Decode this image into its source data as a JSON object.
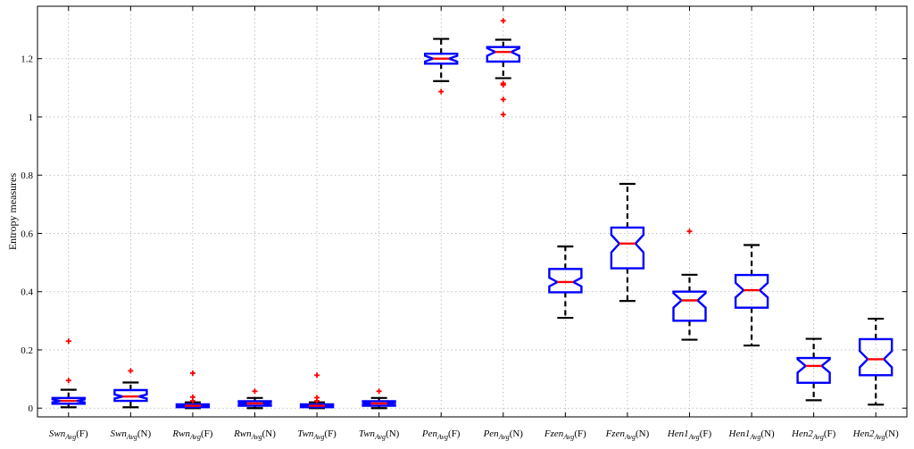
{
  "chart_data": {
    "type": "box",
    "ylabel": "Entropy measures",
    "xlabel": "",
    "title": "",
    "ylim": [
      -0.03,
      1.38
    ],
    "yticks": [
      0,
      0.2,
      0.4,
      0.6,
      0.8,
      1,
      1.2
    ],
    "ytick_labels": [
      "0",
      "0.2",
      "0.4",
      "0.6",
      "0.8",
      "1",
      "1.2"
    ],
    "grid": true,
    "colors": {
      "box": "#0000ff",
      "median": "#ff0000",
      "whisker": "#000000",
      "outlier": "#ff0000",
      "grid": "#b0b0b0"
    },
    "boxes": [
      {
        "base": "Swn",
        "sub": "Avg",
        "suffix": "(F)",
        "q1": 0.015,
        "median": 0.025,
        "q3": 0.035,
        "whisker_low": 0.003,
        "whisker_high": 0.063,
        "notch_low": 0.02,
        "notch_high": 0.03,
        "outliers": [
          0.095,
          0.23
        ]
      },
      {
        "base": "Swn",
        "sub": "Avg",
        "suffix": "(N)",
        "q1": 0.025,
        "median": 0.04,
        "q3": 0.062,
        "whisker_low": 0.003,
        "whisker_high": 0.088,
        "notch_low": 0.033,
        "notch_high": 0.047,
        "outliers": [
          0.128
        ]
      },
      {
        "base": "Rwn",
        "sub": "Avg",
        "suffix": "(F)",
        "q1": 0.003,
        "median": 0.008,
        "q3": 0.013,
        "whisker_low": 0.0,
        "whisker_high": 0.02,
        "notch_low": 0.005,
        "notch_high": 0.011,
        "outliers": [
          0.025,
          0.038,
          0.12
        ]
      },
      {
        "base": "Rwn",
        "sub": "Avg",
        "suffix": "(N)",
        "q1": 0.008,
        "median": 0.016,
        "q3": 0.024,
        "whisker_low": 0.0,
        "whisker_high": 0.035,
        "notch_low": 0.012,
        "notch_high": 0.02,
        "outliers": [
          0.058
        ]
      },
      {
        "base": "Twn",
        "sub": "Avg",
        "suffix": "(F)",
        "q1": 0.003,
        "median": 0.008,
        "q3": 0.013,
        "whisker_low": 0.0,
        "whisker_high": 0.02,
        "notch_low": 0.005,
        "notch_high": 0.011,
        "outliers": [
          0.025,
          0.036,
          0.113
        ]
      },
      {
        "base": "Twn",
        "sub": "Avg",
        "suffix": "(N)",
        "q1": 0.008,
        "median": 0.016,
        "q3": 0.024,
        "whisker_low": 0.0,
        "whisker_high": 0.035,
        "notch_low": 0.012,
        "notch_high": 0.02,
        "outliers": [
          0.058
        ]
      },
      {
        "base": "Pen",
        "sub": "Avg",
        "suffix": "(F)",
        "q1": 1.183,
        "median": 1.2,
        "q3": 1.217,
        "whisker_low": 1.123,
        "whisker_high": 1.268,
        "notch_low": 1.19,
        "notch_high": 1.21,
        "outliers": [
          1.087
        ]
      },
      {
        "base": "Pen",
        "sub": "Avg",
        "suffix": "(N)",
        "q1": 1.19,
        "median": 1.223,
        "q3": 1.24,
        "whisker_low": 1.133,
        "whisker_high": 1.265,
        "notch_low": 1.21,
        "notch_high": 1.236,
        "outliers": [
          1.008,
          1.06,
          1.11,
          1.115,
          1.33
        ]
      },
      {
        "base": "Fzen",
        "sub": "Avg",
        "suffix": "(F)",
        "q1": 0.398,
        "median": 0.433,
        "q3": 0.478,
        "whisker_low": 0.31,
        "whisker_high": 0.555,
        "notch_low": 0.418,
        "notch_high": 0.448,
        "outliers": []
      },
      {
        "base": "Fzen",
        "sub": "Avg",
        "suffix": "(N)",
        "q1": 0.48,
        "median": 0.565,
        "q3": 0.62,
        "whisker_low": 0.368,
        "whisker_high": 0.77,
        "notch_low": 0.535,
        "notch_high": 0.595,
        "outliers": []
      },
      {
        "base": "Hen1",
        "sub": "Avg",
        "suffix": "(F)",
        "q1": 0.3,
        "median": 0.37,
        "q3": 0.4,
        "whisker_low": 0.235,
        "whisker_high": 0.458,
        "notch_low": 0.345,
        "notch_high": 0.395,
        "outliers": [
          0.607
        ]
      },
      {
        "base": "Hen1",
        "sub": "Avg",
        "suffix": "(N)",
        "q1": 0.345,
        "median": 0.405,
        "q3": 0.457,
        "whisker_low": 0.215,
        "whisker_high": 0.56,
        "notch_low": 0.38,
        "notch_high": 0.43,
        "outliers": []
      },
      {
        "base": "Hen2",
        "sub": "Avg",
        "suffix": "(F)",
        "q1": 0.087,
        "median": 0.145,
        "q3": 0.172,
        "whisker_low": 0.027,
        "whisker_high": 0.238,
        "notch_low": 0.122,
        "notch_high": 0.168,
        "outliers": []
      },
      {
        "base": "Hen2",
        "sub": "Avg",
        "suffix": "(N)",
        "q1": 0.113,
        "median": 0.168,
        "q3": 0.237,
        "whisker_low": 0.012,
        "whisker_high": 0.307,
        "notch_low": 0.14,
        "notch_high": 0.196,
        "outliers": []
      }
    ]
  }
}
